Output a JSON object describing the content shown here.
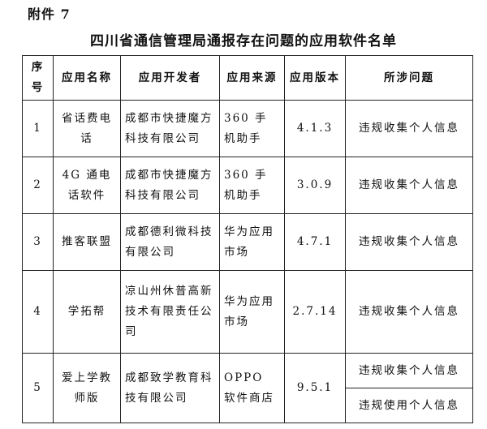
{
  "header": {
    "attachment": "附件 7",
    "title": "四川省通信管理局通报存在问题的应用软件名单"
  },
  "table": {
    "headers": [
      "序号",
      "应用名称",
      "应用开发者",
      "应用来源",
      "应用版本",
      "所涉问题"
    ],
    "rows": [
      {
        "no": "1",
        "name": "省话费电话",
        "developer": "成都市快捷魔方科技有限公司",
        "source": "360 手机助手",
        "version": "4.1.3",
        "issues": [
          "违规收集个人信息"
        ]
      },
      {
        "no": "2",
        "name": "4G 通电话软件",
        "developer": "成都市快捷魔方科技有限公司",
        "source": "360 手机助手",
        "version": "3.0.9",
        "issues": [
          "违规收集个人信息"
        ]
      },
      {
        "no": "3",
        "name": "推客联盟",
        "developer": "成都德利微科技有限公司",
        "source": "华为应用市场",
        "version": "4.7.1",
        "issues": [
          "违规收集个人信息"
        ]
      },
      {
        "no": "4",
        "name": "学拓帮",
        "developer": "凉山州休普高新技术有限责任公司",
        "source": "华为应用市场",
        "version": "2.7.14",
        "issues": [
          "违规收集个人信息"
        ]
      },
      {
        "no": "5",
        "name": "爱上学教师版",
        "developer": "成都致学教育科技有限公司",
        "source": "OPPO 软件商店",
        "version": "9.5.1",
        "issues": [
          "违规收集个人信息",
          "违规使用个人信息"
        ]
      }
    ]
  }
}
